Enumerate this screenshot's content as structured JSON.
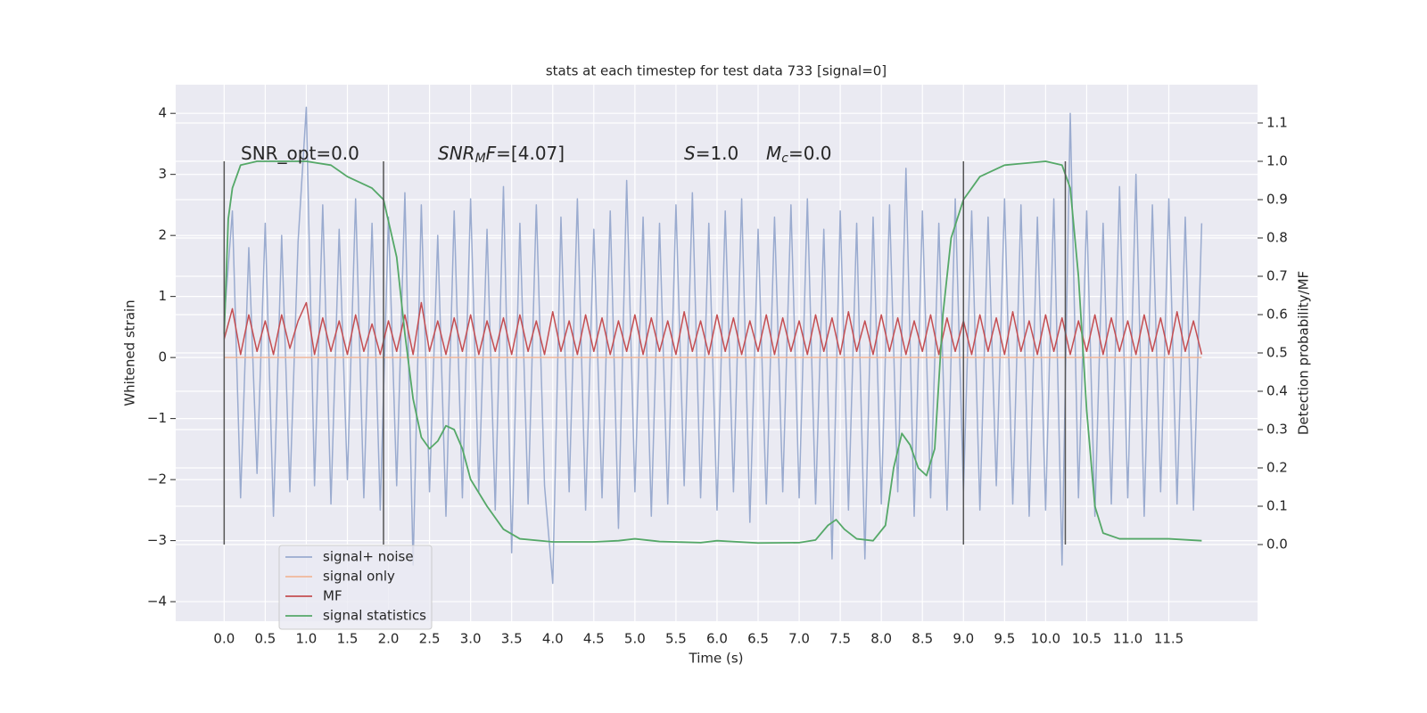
{
  "chart_data": {
    "type": "line",
    "title": "stats at each timestep for test data 733 [signal=0]",
    "xlabel": "Time (s)",
    "ylabel": "Whitened strain",
    "y2label": "Detection probability/MF",
    "grid": true,
    "legend_loc": "lower left",
    "background": "#eaeaf2",
    "xlim": [
      -0.59,
      12.58
    ],
    "ylim": [
      -4.32,
      4.47
    ],
    "y2lim": [
      -0.2,
      1.2
    ],
    "xticks": [
      {
        "value": 0,
        "label": "0.0"
      },
      {
        "value": 0.5,
        "label": "0.5"
      },
      {
        "value": 1,
        "label": "1.0"
      },
      {
        "value": 1.5,
        "label": "1.5"
      },
      {
        "value": 2,
        "label": "2.0"
      },
      {
        "value": 2.5,
        "label": "2.5"
      },
      {
        "value": 3,
        "label": "3.0"
      },
      {
        "value": 3.5,
        "label": "3.5"
      },
      {
        "value": 4,
        "label": "4.0"
      },
      {
        "value": 4.5,
        "label": "4.5"
      },
      {
        "value": 5,
        "label": "5.0"
      },
      {
        "value": 5.5,
        "label": "5.5"
      },
      {
        "value": 6,
        "label": "6.0"
      },
      {
        "value": 6.5,
        "label": "6.5"
      },
      {
        "value": 7,
        "label": "7.0"
      },
      {
        "value": 7.5,
        "label": "7.5"
      },
      {
        "value": 8,
        "label": "8.0"
      },
      {
        "value": 8.5,
        "label": "8.5"
      },
      {
        "value": 9,
        "label": "9.0"
      },
      {
        "value": 9.5,
        "label": "9.5"
      },
      {
        "value": 10,
        "label": "10.0"
      },
      {
        "value": 10.5,
        "label": "10.5"
      },
      {
        "value": 11,
        "label": "11.0"
      },
      {
        "value": 11.5,
        "label": "11.5"
      }
    ],
    "yticks": [
      {
        "value": -4,
        "label": "−4"
      },
      {
        "value": -3,
        "label": "−3"
      },
      {
        "value": -2,
        "label": "−2"
      },
      {
        "value": -1,
        "label": "−1"
      },
      0,
      1,
      2,
      3,
      4
    ],
    "y2ticks": [
      {
        "value": 0,
        "label": "0.0"
      },
      {
        "value": 0.1,
        "label": "0.1"
      },
      {
        "value": 0.2,
        "label": "0.2"
      },
      {
        "value": 0.3,
        "label": "0.3"
      },
      {
        "value": 0.4,
        "label": "0.4"
      },
      {
        "value": 0.5,
        "label": "0.5"
      },
      {
        "value": 0.6,
        "label": "0.6"
      },
      {
        "value": 0.7,
        "label": "0.7"
      },
      {
        "value": 0.8,
        "label": "0.8"
      },
      {
        "value": 0.9,
        "label": "0.9"
      },
      {
        "value": 1,
        "label": "1.0"
      },
      {
        "value": 1.1,
        "label": "1.1"
      }
    ],
    "vlines": [
      0,
      1.94,
      9.0,
      10.24
    ],
    "vline_range": [
      0,
      1
    ],
    "vline_color": "#555555",
    "annotations": [
      [
        {
          "text": "SNR_opt=0.0"
        }
      ],
      [
        {
          "text": "SNR",
          "italic": true
        },
        {
          "text": "M",
          "italic": true,
          "sub": true
        },
        {
          "text": "F",
          "italic": true
        },
        {
          "text": "=[4.07]"
        }
      ],
      [
        {
          "text": "S",
          "italic": true
        },
        {
          "text": "=1.0"
        }
      ],
      [
        {
          "text": "M",
          "italic": true
        },
        {
          "text": "c",
          "italic": true,
          "sub": true
        },
        {
          "text": "=0.0"
        }
      ]
    ],
    "x": [
      0,
      0.1,
      0.2,
      0.3,
      0.4,
      0.5,
      0.6,
      0.7,
      0.8,
      0.9,
      1,
      1.1,
      1.2,
      1.3,
      1.4,
      1.5,
      1.6,
      1.7,
      1.8,
      1.9,
      2,
      2.1,
      2.2,
      2.3,
      2.4,
      2.5,
      2.6,
      2.7,
      2.8,
      2.9,
      3,
      3.1,
      3.2,
      3.3,
      3.4,
      3.5,
      3.6,
      3.7,
      3.8,
      3.9,
      4,
      4.1,
      4.2,
      4.3,
      4.4,
      4.5,
      4.6,
      4.7,
      4.8,
      4.9,
      5,
      5.1,
      5.2,
      5.3,
      5.4,
      5.5,
      5.6,
      5.7,
      5.8,
      5.9,
      6,
      6.1,
      6.2,
      6.3,
      6.4,
      6.5,
      6.6,
      6.7,
      6.8,
      6.9,
      7,
      7.1,
      7.2,
      7.3,
      7.4,
      7.5,
      7.6,
      7.7,
      7.8,
      7.9,
      8,
      8.1,
      8.2,
      8.3,
      8.4,
      8.5,
      8.6,
      8.7,
      8.8,
      8.9,
      9,
      9.1,
      9.2,
      9.3,
      9.4,
      9.5,
      9.6,
      9.7,
      9.8,
      9.9,
      10,
      10.1,
      10.2,
      10.3,
      10.4,
      10.5,
      10.6,
      10.7,
      10.8,
      10.9,
      11,
      11.1,
      11.2,
      11.3,
      11.4,
      11.5,
      11.6,
      11.7,
      11.8,
      11.9
    ],
    "series": [
      {
        "name": "signal+ noise",
        "color": "#9aabcf",
        "values": [
          0.6,
          2.4,
          -2.3,
          1.8,
          -1.9,
          2.2,
          -2.6,
          2.0,
          -2.2,
          1.9,
          4.1,
          -2.1,
          2.5,
          -2.4,
          2.1,
          -2.0,
          2.6,
          -2.3,
          2.2,
          -2.5,
          2.3,
          -2.1,
          2.7,
          -3.4,
          2.5,
          -2.2,
          2.0,
          -2.6,
          2.4,
          -2.3,
          2.6,
          -2.2,
          2.1,
          -2.5,
          2.8,
          -3.2,
          2.2,
          -2.4,
          2.5,
          -2.1,
          -3.7,
          2.3,
          -2.2,
          2.6,
          -2.5,
          2.1,
          -2.3,
          2.4,
          -2.8,
          2.9,
          -2.2,
          2.3,
          -2.6,
          2.2,
          -2.4,
          2.5,
          -2.1,
          2.7,
          -2.3,
          2.2,
          -2.5,
          2.4,
          -2.2,
          2.6,
          -2.7,
          2.1,
          -2.4,
          2.3,
          -2.2,
          2.5,
          -2.3,
          2.6,
          -2.4,
          2.1,
          -3.3,
          2.4,
          -2.5,
          2.2,
          -3.3,
          2.3,
          -2.4,
          2.5,
          -2.2,
          3.1,
          -2.6,
          2.4,
          -2.3,
          2.2,
          -2.5,
          2.6,
          -2.2,
          2.4,
          -2.5,
          2.3,
          -2.1,
          2.6,
          -2.4,
          2.5,
          -2.6,
          2.3,
          -2.5,
          2.6,
          -3.4,
          4.0,
          -2.3,
          2.4,
          -2.6,
          2.2,
          -2.4,
          2.8,
          -2.3,
          3.0,
          -2.6,
          2.5,
          -2.2,
          2.6,
          -2.4,
          2.3,
          -2.5,
          2.2
        ]
      },
      {
        "name": "signal only",
        "color": "#f0b79a",
        "values": [
          0,
          0,
          0,
          0,
          0,
          0,
          0,
          0,
          0,
          0,
          0,
          0,
          0,
          0,
          0,
          0,
          0,
          0,
          0,
          0,
          0,
          0,
          0,
          0,
          0,
          0,
          0,
          0,
          0,
          0,
          0,
          0,
          0,
          0,
          0,
          0,
          0,
          0,
          0,
          0,
          0,
          0,
          0,
          0,
          0,
          0,
          0,
          0,
          0,
          0,
          0,
          0,
          0,
          0,
          0,
          0,
          0,
          0,
          0,
          0,
          0,
          0,
          0,
          0,
          0,
          0,
          0,
          0,
          0,
          0,
          0,
          0,
          0,
          0,
          0,
          0,
          0,
          0,
          0,
          0,
          0,
          0,
          0,
          0,
          0,
          0,
          0,
          0,
          0,
          0,
          0,
          0,
          0,
          0,
          0,
          0,
          0,
          0,
          0,
          0,
          0,
          0,
          0,
          0,
          0,
          0,
          0,
          0,
          0,
          0,
          0,
          0,
          0,
          0,
          0,
          0,
          0,
          0,
          0,
          0
        ]
      },
      {
        "name": "MF",
        "color": "#c44e52",
        "values": [
          0.3,
          0.8,
          0.05,
          0.7,
          0.1,
          0.6,
          0.05,
          0.7,
          0.15,
          0.6,
          0.9,
          0.05,
          0.65,
          0.1,
          0.6,
          0.05,
          0.7,
          0.1,
          0.55,
          0.05,
          0.6,
          0.1,
          0.7,
          0.05,
          0.9,
          0.1,
          0.6,
          0.05,
          0.65,
          0.1,
          0.7,
          0.05,
          0.6,
          0.1,
          0.65,
          0.05,
          0.7,
          0.1,
          0.6,
          0.05,
          0.75,
          0.1,
          0.6,
          0.05,
          0.7,
          0.1,
          0.65,
          0.05,
          0.6,
          0.1,
          0.7,
          0.05,
          0.65,
          0.1,
          0.6,
          0.05,
          0.75,
          0.1,
          0.6,
          0.05,
          0.7,
          0.1,
          0.65,
          0.05,
          0.6,
          0.1,
          0.7,
          0.05,
          0.65,
          0.1,
          0.6,
          0.05,
          0.7,
          0.1,
          0.65,
          0.05,
          0.75,
          0.1,
          0.6,
          0.05,
          0.7,
          0.1,
          0.65,
          0.05,
          0.6,
          0.1,
          0.7,
          0.05,
          0.65,
          0.1,
          0.6,
          0.05,
          0.7,
          0.1,
          0.65,
          0.05,
          0.75,
          0.1,
          0.6,
          0.05,
          0.7,
          0.1,
          0.65,
          0.05,
          0.6,
          0.1,
          0.7,
          0.05,
          0.65,
          0.1,
          0.6,
          0.05,
          0.7,
          0.1,
          0.65,
          0.05,
          0.75,
          0.1,
          0.6,
          0.05
        ]
      },
      {
        "name": "signal statistics",
        "color": "#55a868",
        "axis": "y2",
        "x": [
          0,
          0.05,
          0.1,
          0.2,
          0.4,
          1.0,
          1.3,
          1.5,
          1.8,
          1.94,
          2.1,
          2.2,
          2.3,
          2.4,
          2.5,
          2.6,
          2.7,
          2.8,
          2.9,
          3.0,
          3.2,
          3.4,
          3.6,
          4.0,
          4.5,
          4.8,
          5.0,
          5.3,
          5.8,
          6.0,
          6.5,
          7.0,
          7.2,
          7.35,
          7.45,
          7.55,
          7.7,
          7.9,
          8.05,
          8.15,
          8.25,
          8.35,
          8.45,
          8.55,
          8.65,
          8.75,
          8.85,
          9.0,
          9.2,
          9.5,
          10.0,
          10.2,
          10.3,
          10.4,
          10.5,
          10.6,
          10.7,
          10.9,
          11.5,
          11.9
        ],
        "values": [
          0.55,
          0.85,
          0.93,
          0.99,
          1.0,
          1.0,
          0.99,
          0.96,
          0.93,
          0.9,
          0.75,
          0.55,
          0.38,
          0.28,
          0.25,
          0.27,
          0.31,
          0.3,
          0.25,
          0.17,
          0.1,
          0.04,
          0.015,
          0.007,
          0.007,
          0.01,
          0.015,
          0.008,
          0.005,
          0.01,
          0.004,
          0.005,
          0.012,
          0.05,
          0.065,
          0.04,
          0.015,
          0.01,
          0.05,
          0.2,
          0.29,
          0.26,
          0.2,
          0.18,
          0.25,
          0.6,
          0.8,
          0.9,
          0.96,
          0.99,
          1.0,
          0.99,
          0.93,
          0.7,
          0.35,
          0.1,
          0.03,
          0.015,
          0.015,
          0.01
        ]
      }
    ]
  }
}
